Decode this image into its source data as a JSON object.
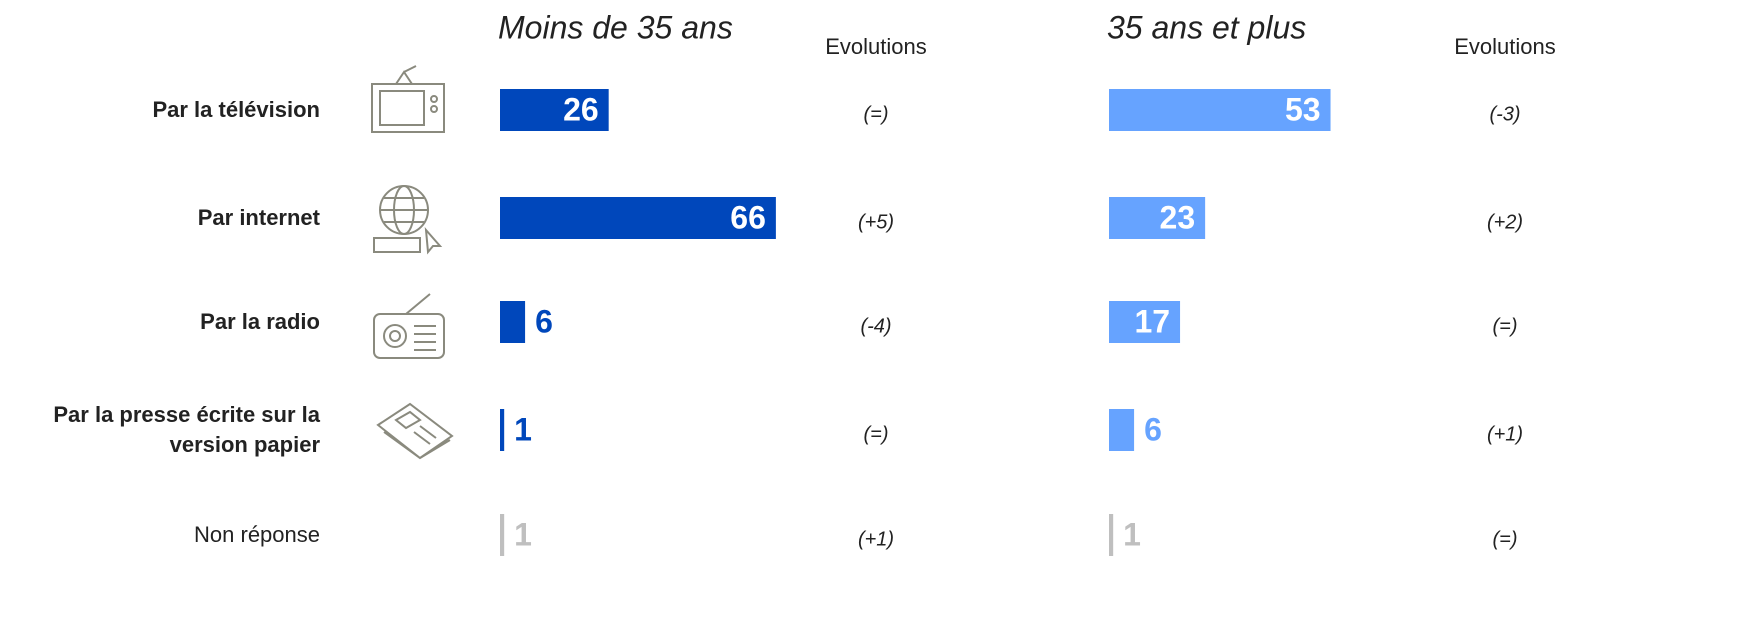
{
  "chart_data": [
    {
      "type": "bar",
      "title": "Moins de 35 ans",
      "evolutions_title": "Evolutions",
      "categories": [
        "Par la télévision",
        "Par internet",
        "Par la radio",
        "Par la presse écrite sur la version papier",
        "Non réponse"
      ],
      "values": [
        26,
        66,
        6,
        1,
        1
      ],
      "colors": [
        "#0047bb",
        "#0047bb",
        "#0047bb",
        "#0047bb",
        "#bfbfbf"
      ],
      "evolutions": [
        "(=)",
        "(+5)",
        "(-4)",
        "(=)",
        "(+1)"
      ],
      "xlim": [
        0,
        100
      ]
    },
    {
      "type": "bar",
      "title": "35 ans et plus",
      "evolutions_title": "Evolutions",
      "values": [
        53,
        23,
        17,
        6,
        1
      ],
      "colors": [
        "#66a3ff",
        "#66a3ff",
        "#66a3ff",
        "#66a3ff",
        "#bfbfbf"
      ],
      "evolutions": [
        "(-3)",
        "(+2)",
        "(=)",
        "(+1)",
        "(=)"
      ],
      "xlim": [
        0,
        100
      ]
    }
  ]
}
